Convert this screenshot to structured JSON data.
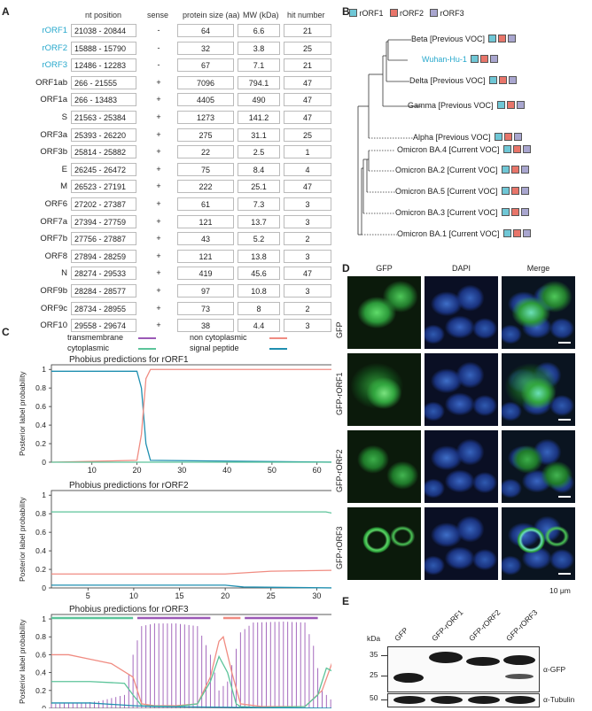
{
  "panel_letters": {
    "a": "A",
    "b": "B",
    "c": "C",
    "d": "D",
    "e": "E"
  },
  "tableA": {
    "headers": {
      "position": "nt position",
      "sense": "sense",
      "size": "protein size (aa)",
      "mw": "MW (kDa)",
      "hits": "hit number"
    },
    "rows": [
      {
        "name": "rORF1",
        "pos": "21038 - 20844",
        "sense": "-",
        "size": "64",
        "mw": "6.6",
        "hits": "21",
        "highlight": true
      },
      {
        "name": "rORF2",
        "pos": "15888 - 15790",
        "sense": "-",
        "size": "32",
        "mw": "3.8",
        "hits": "25",
        "highlight": true
      },
      {
        "name": "rORF3",
        "pos": "12486 - 12283",
        "sense": "-",
        "size": "67",
        "mw": "7.1",
        "hits": "21",
        "highlight": true
      },
      {
        "name": "ORF1ab",
        "pos": "266   - 21555",
        "sense": "+",
        "size": "7096",
        "mw": "794.1",
        "hits": "47",
        "highlight": false
      },
      {
        "name": "ORF1a",
        "pos": "266   - 13483",
        "sense": "+",
        "size": "4405",
        "mw": "490",
        "hits": "47",
        "highlight": false
      },
      {
        "name": "S",
        "pos": "21563 - 25384",
        "sense": "+",
        "size": "1273",
        "mw": "141.2",
        "hits": "47",
        "highlight": false
      },
      {
        "name": "ORF3a",
        "pos": "25393 - 26220",
        "sense": "+",
        "size": "275",
        "mw": "31.1",
        "hits": "25",
        "highlight": false
      },
      {
        "name": "ORF3b",
        "pos": "25814 - 25882",
        "sense": "+",
        "size": "22",
        "mw": "2.5",
        "hits": "1",
        "highlight": false
      },
      {
        "name": "E",
        "pos": "26245 - 26472",
        "sense": "+",
        "size": "75",
        "mw": "8.4",
        "hits": "4",
        "highlight": false
      },
      {
        "name": "M",
        "pos": "26523 - 27191",
        "sense": "+",
        "size": "222",
        "mw": "25.1",
        "hits": "47",
        "highlight": false
      },
      {
        "name": "ORF6",
        "pos": "27202 - 27387",
        "sense": "+",
        "size": "61",
        "mw": "7.3",
        "hits": "3",
        "highlight": false
      },
      {
        "name": "ORF7a",
        "pos": "27394 - 27759",
        "sense": "+",
        "size": "121",
        "mw": "13.7",
        "hits": "3",
        "highlight": false
      },
      {
        "name": "ORF7b",
        "pos": "27756 - 27887",
        "sense": "+",
        "size": "43",
        "mw": "5.2",
        "hits": "2",
        "highlight": false
      },
      {
        "name": "ORF8",
        "pos": "27894 - 28259",
        "sense": "+",
        "size": "121",
        "mw": "13.8",
        "hits": "3",
        "highlight": false
      },
      {
        "name": "N",
        "pos": "28274 - 29533",
        "sense": "+",
        "size": "419",
        "mw": "45.6",
        "hits": "47",
        "highlight": false
      },
      {
        "name": "ORF9b",
        "pos": "28284 - 28577",
        "sense": "+",
        "size": "97",
        "mw": "10.8",
        "hits": "3",
        "highlight": false
      },
      {
        "name": "ORF9c",
        "pos": "28734 - 28955",
        "sense": "+",
        "size": "73",
        "mw": "8",
        "hits": "2",
        "highlight": false
      },
      {
        "name": "ORF10",
        "pos": "29558 - 29674",
        "sense": "+",
        "size": "38",
        "mw": "4.4",
        "hits": "3",
        "highlight": false
      }
    ]
  },
  "treeB": {
    "legend": [
      "rORF1",
      "rORF2",
      "rORF3"
    ],
    "colors": {
      "rORF1": "#6fc7d6",
      "rORF2": "#e8756a",
      "rORF3": "#a9a6cf",
      "wuhan": "#27a8cc"
    },
    "leaves": [
      {
        "label": "Beta [Previous VOC]",
        "wuhan": false
      },
      {
        "label": "Wuhan-Hu-1",
        "wuhan": true
      },
      {
        "label": "Delta [Previous VOC]",
        "wuhan": false
      },
      {
        "label": "Gamma [Previous VOC]",
        "wuhan": false
      },
      {
        "label": "Alpha [Previous VOC]",
        "wuhan": false
      },
      {
        "label": "Omicron BA.4 [Current VOC]",
        "wuhan": false
      },
      {
        "label": "Omicron BA.2 [Current VOC]",
        "wuhan": false
      },
      {
        "label": "Omicron BA.5 [Current VOC]",
        "wuhan": false
      },
      {
        "label": "Omicron BA.3 [Current VOC]",
        "wuhan": false
      },
      {
        "label": "Omicron BA.1 [Current VOC]",
        "wuhan": false
      }
    ]
  },
  "chart_data": [
    {
      "type": "line",
      "title": "Phobius predictions for rORF1",
      "ylabel": "Posterior label probability",
      "xlim": [
        1,
        64
      ],
      "ylim": [
        0,
        1.05
      ],
      "xticks": [
        10,
        20,
        30,
        40,
        50,
        60
      ],
      "yticks": [
        0,
        0.2,
        0.4,
        0.6,
        0.8,
        1
      ],
      "legend": [
        {
          "name": "transmembrane",
          "color": "#9b59b6"
        },
        {
          "name": "non cytoplasmic",
          "color": "#f08c82"
        },
        {
          "name": "cytoplasmic",
          "color": "#5cc49a"
        },
        {
          "name": "signal peptide",
          "color": "#1f8fb0"
        }
      ],
      "series": [
        {
          "name": "signal peptide",
          "x": [
            1,
            20,
            21,
            22,
            23,
            64
          ],
          "y": [
            0.98,
            0.98,
            0.8,
            0.2,
            0.02,
            0.0
          ]
        },
        {
          "name": "non cytoplasmic",
          "x": [
            1,
            20,
            21,
            22,
            23,
            64
          ],
          "y": [
            0.0,
            0.02,
            0.3,
            0.9,
            1.0,
            1.0
          ]
        },
        {
          "name": "cytoplasmic",
          "x": [
            1,
            64
          ],
          "y": [
            0.0,
            0.0
          ]
        }
      ]
    },
    {
      "type": "line",
      "title": "Phobius predictions for rORF2",
      "ylabel": "Posterior label probability",
      "xlim": [
        1,
        32
      ],
      "ylim": [
        0,
        1.05
      ],
      "xticks": [
        5,
        10,
        15,
        20,
        25,
        30
      ],
      "yticks": [
        0,
        0.2,
        0.4,
        0.6,
        0.8,
        1
      ],
      "series": [
        {
          "name": "cytoplasmic",
          "x": [
            1,
            31,
            32
          ],
          "y": [
            0.82,
            0.82,
            0.8
          ]
        },
        {
          "name": "non cytoplasmic",
          "x": [
            1,
            20,
            25,
            32
          ],
          "y": [
            0.15,
            0.15,
            0.18,
            0.19
          ]
        },
        {
          "name": "signal peptide",
          "x": [
            1,
            20,
            22,
            32
          ],
          "y": [
            0.03,
            0.03,
            0.01,
            0.0
          ]
        }
      ]
    },
    {
      "type": "line",
      "title": "Phobius predictions for rORF3",
      "ylabel": "Posterior label probability",
      "xlim": [
        1,
        67
      ],
      "ylim": [
        0,
        1.05
      ],
      "xticks": [
        10,
        20,
        30,
        40,
        50,
        60
      ],
      "yticks": [
        0,
        0.2,
        0.4,
        0.6,
        0.8,
        1
      ],
      "topology": [
        {
          "name": "cytoplasmic",
          "from": 1,
          "to": 20
        },
        {
          "name": "transmembrane",
          "from": 21,
          "to": 38
        },
        {
          "name": "non cytoplasmic",
          "from": 41,
          "to": 45
        },
        {
          "name": "transmembrane",
          "from": 46,
          "to": 63
        }
      ],
      "series": [
        {
          "name": "transmembrane",
          "x": [
            1,
            8,
            12,
            18,
            20,
            22,
            25,
            30,
            35,
            38,
            40,
            42,
            45,
            48,
            55,
            60,
            62,
            64,
            67
          ],
          "y": [
            0.05,
            0.06,
            0.08,
            0.15,
            0.6,
            0.92,
            0.95,
            0.95,
            0.92,
            0.6,
            0.2,
            0.3,
            0.85,
            0.96,
            0.97,
            0.96,
            0.7,
            0.2,
            0.05
          ]
        },
        {
          "name": "non cytoplasmic",
          "x": [
            1,
            5,
            10,
            15,
            20,
            22,
            25,
            30,
            35,
            38,
            40,
            41,
            43,
            45,
            50,
            60,
            64,
            67
          ],
          "y": [
            0.6,
            0.6,
            0.55,
            0.5,
            0.35,
            0.05,
            0.03,
            0.03,
            0.05,
            0.35,
            0.75,
            0.8,
            0.4,
            0.05,
            0.02,
            0.02,
            0.2,
            0.6
          ]
        },
        {
          "name": "cytoplasmic",
          "x": [
            1,
            10,
            18,
            20,
            22,
            30,
            35,
            38,
            40,
            42,
            44,
            45,
            50,
            60,
            63,
            65,
            67
          ],
          "y": [
            0.3,
            0.3,
            0.28,
            0.15,
            0.03,
            0.02,
            0.05,
            0.3,
            0.58,
            0.4,
            0.05,
            0.02,
            0.01,
            0.02,
            0.15,
            0.45,
            0.4
          ]
        },
        {
          "name": "signal peptide",
          "x": [
            1,
            10,
            20,
            25,
            67
          ],
          "y": [
            0.06,
            0.06,
            0.03,
            0.02,
            0.0
          ]
        }
      ]
    }
  ],
  "panelD": {
    "cols": [
      "GFP",
      "DAPI",
      "Merge"
    ],
    "rows": [
      "GFP",
      "GFP-rORF1",
      "GFP-rORF2",
      "GFP-rORF3"
    ],
    "scale": "10 μm"
  },
  "panelE": {
    "lanes": [
      "GFP",
      "GFP-rORF1",
      "GFP-rORF2",
      "GFP-rORF3"
    ],
    "kda_label": "kDa",
    "markers": [
      "35",
      "25",
      "50"
    ],
    "antibodies": [
      "α-GFP",
      "α-Tubulin"
    ]
  }
}
